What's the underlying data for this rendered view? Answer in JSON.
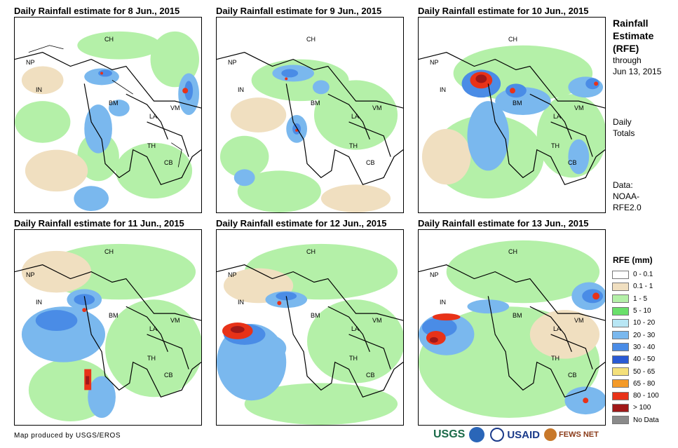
{
  "panels": [
    {
      "title": "Daily Rainfall estimate for 8 Jun., 2015"
    },
    {
      "title": "Daily Rainfall estimate for 9 Jun., 2015"
    },
    {
      "title": "Daily Rainfall estimate for 10 Jun., 2015"
    },
    {
      "title": "Daily Rainfall estimate for 11 Jun., 2015"
    },
    {
      "title": "Daily Rainfall estimate for 12 Jun., 2015"
    },
    {
      "title": "Daily Rainfall estimate for 13 Jun., 2015"
    }
  ],
  "country_labels": {
    "ch": "CH",
    "np": "NP",
    "in": "IN",
    "bm": "BM",
    "la": "LA",
    "vm": "VM",
    "th": "TH",
    "cb": "CB"
  },
  "side": {
    "title_line1": "Rainfall",
    "title_line2": "Estimate",
    "title_line3": "(RFE)",
    "through_line1": "through",
    "through_line2": "Jun 13, 2015",
    "daily_line1": "Daily",
    "daily_line2": "Totals",
    "data_line1": "Data:",
    "data_line2": "NOAA-",
    "data_line3": "RFE2.0"
  },
  "legend": {
    "title": "RFE (mm)",
    "items": [
      {
        "label": "0 - 0.1",
        "color": "#ffffff"
      },
      {
        "label": "0.1 - 1",
        "color": "#f0dfc0"
      },
      {
        "label": "1 - 5",
        "color": "#b4f0a8"
      },
      {
        "label": "5 - 10",
        "color": "#6ae06a"
      },
      {
        "label": "10 - 20",
        "color": "#b8e6f4"
      },
      {
        "label": "20 - 30",
        "color": "#7ab8ee"
      },
      {
        "label": "30 - 40",
        "color": "#4a8ce6"
      },
      {
        "label": "40 - 50",
        "color": "#2a5ad4"
      },
      {
        "label": "50 - 65",
        "color": "#f4e07a"
      },
      {
        "label": "65 - 80",
        "color": "#f49a28"
      },
      {
        "label": "80 - 100",
        "color": "#e83218"
      },
      {
        "label": "> 100",
        "color": "#a01818"
      },
      {
        "label": "No Data",
        "color": "#8a8a8a"
      }
    ]
  },
  "credit": "Map produced by USGS/EROS",
  "logos": {
    "usgs": "USGS",
    "usaid": "USAID",
    "fews": "FEWS NET"
  }
}
